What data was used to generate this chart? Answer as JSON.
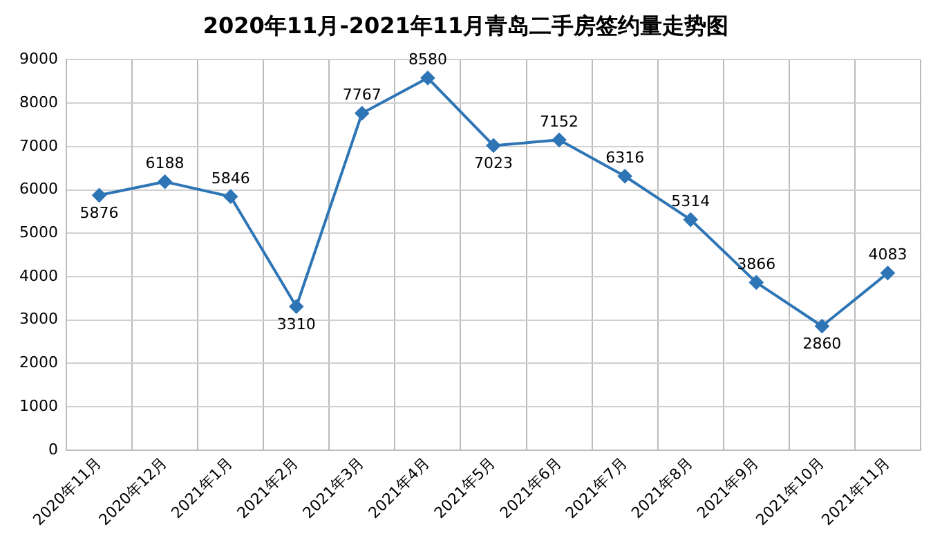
{
  "chart_data": {
    "type": "line",
    "title": "2020年11月-2021年11月青岛二手房签约量走势图",
    "categories": [
      "2020年11月",
      "2020年12月",
      "2021年1月",
      "2021年2月",
      "2021年3月",
      "2021年4月",
      "2021年5月",
      "2021年6月",
      "2021年7月",
      "2021年8月",
      "2021年9月",
      "2021年10月",
      "2021年11月"
    ],
    "series": [
      {
        "color": "#2e75b6",
        "values": [
          5876,
          6188,
          5846,
          3310,
          7767,
          8580,
          7023,
          7152,
          6316,
          5314,
          3866,
          2860,
          4083
        ]
      }
    ],
    "ylim": [
      0,
      9000
    ],
    "yticks": [
      0,
      1000,
      2000,
      3000,
      4000,
      5000,
      6000,
      7000,
      8000,
      9000
    ],
    "grid": true,
    "marker": "diamond",
    "line_style": "solid",
    "data_labels": true,
    "legend": false
  }
}
